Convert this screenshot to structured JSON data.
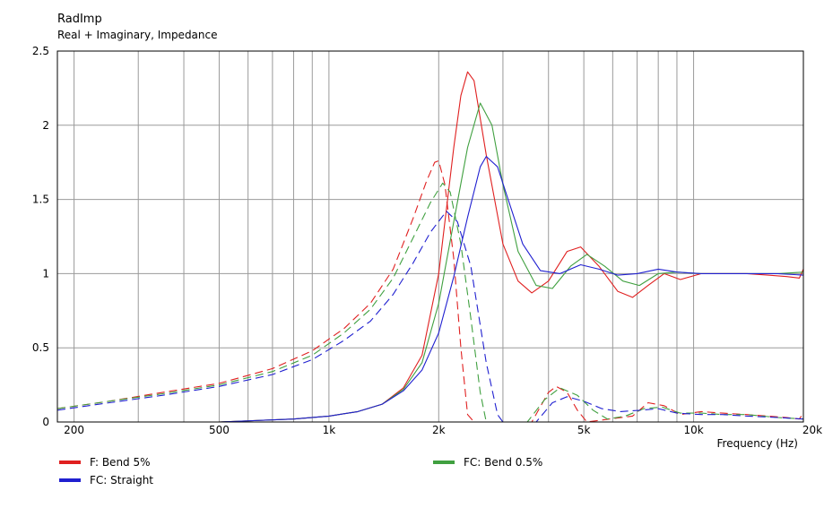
{
  "chart_data": {
    "type": "line",
    "title": "RadImp",
    "subtitle": "Real + Imaginary, Impedance",
    "xlabel": "Frequency  (Hz)",
    "ylabel": "",
    "xscale": "log",
    "xlim": [
      180,
      20000
    ],
    "ylim": [
      0,
      2.5
    ],
    "grid": true,
    "legend_placement": "bottom",
    "x_tick_labels": [
      {
        "value": 200,
        "label": "200"
      },
      {
        "value": 500,
        "label": "500"
      },
      {
        "value": 1000,
        "label": "1k"
      },
      {
        "value": 2000,
        "label": "2k"
      },
      {
        "value": 5000,
        "label": "5k"
      },
      {
        "value": 10000,
        "label": "10k"
      },
      {
        "value": 20000,
        "label": "20k"
      }
    ],
    "y_tick_labels": [
      {
        "value": 0,
        "label": "0"
      },
      {
        "value": 0.5,
        "label": "0.5"
      },
      {
        "value": 1,
        "label": "1"
      },
      {
        "value": 1.5,
        "label": "1.5"
      },
      {
        "value": 2,
        "label": "2"
      },
      {
        "value": 2.5,
        "label": "2.5"
      }
    ],
    "series": [
      {
        "name": "F: Bend 5%",
        "color": "#e02020",
        "real": [
          [
            180,
            0
          ],
          [
            500,
            0
          ],
          [
            800,
            0.02
          ],
          [
            1000,
            0.04
          ],
          [
            1200,
            0.07
          ],
          [
            1400,
            0.12
          ],
          [
            1600,
            0.23
          ],
          [
            1800,
            0.45
          ],
          [
            2000,
            1.0
          ],
          [
            2200,
            1.85
          ],
          [
            2300,
            2.2
          ],
          [
            2400,
            2.36
          ],
          [
            2500,
            2.3
          ],
          [
            2700,
            1.8
          ],
          [
            3000,
            1.2
          ],
          [
            3300,
            0.95
          ],
          [
            3600,
            0.87
          ],
          [
            4000,
            0.95
          ],
          [
            4500,
            1.15
          ],
          [
            4900,
            1.18
          ],
          [
            5500,
            1.05
          ],
          [
            6200,
            0.88
          ],
          [
            6800,
            0.84
          ],
          [
            7500,
            0.92
          ],
          [
            8300,
            1.0
          ],
          [
            9200,
            0.96
          ],
          [
            10500,
            1.0
          ],
          [
            12000,
            1.0
          ],
          [
            14000,
            1.0
          ],
          [
            16000,
            0.99
          ],
          [
            18000,
            0.98
          ],
          [
            19500,
            0.97
          ],
          [
            20000,
            1.03
          ]
        ],
        "imag": [
          [
            180,
            0.09
          ],
          [
            250,
            0.14
          ],
          [
            350,
            0.2
          ],
          [
            500,
            0.26
          ],
          [
            700,
            0.36
          ],
          [
            900,
            0.48
          ],
          [
            1100,
            0.63
          ],
          [
            1300,
            0.8
          ],
          [
            1500,
            1.03
          ],
          [
            1700,
            1.37
          ],
          [
            1850,
            1.62
          ],
          [
            1950,
            1.75
          ],
          [
            2000,
            1.76
          ],
          [
            2080,
            1.6
          ],
          [
            2200,
            1.1
          ],
          [
            2300,
            0.5
          ],
          [
            2400,
            0.05
          ],
          [
            2500,
            0
          ],
          [
            3600,
            0
          ],
          [
            4000,
            0.2
          ],
          [
            4200,
            0.24
          ],
          [
            4500,
            0.2
          ],
          [
            4800,
            0.08
          ],
          [
            5100,
            0
          ],
          [
            6800,
            0.04
          ],
          [
            7500,
            0.13
          ],
          [
            8300,
            0.11
          ],
          [
            9200,
            0.05
          ],
          [
            10500,
            0.07
          ],
          [
            12000,
            0.06
          ],
          [
            14000,
            0.05
          ],
          [
            16000,
            0.04
          ],
          [
            18000,
            0.03
          ],
          [
            19500,
            0.02
          ],
          [
            20000,
            0.06
          ]
        ]
      },
      {
        "name": "FC: Bend 0.5%",
        "color": "#40a040",
        "real": [
          [
            180,
            0
          ],
          [
            500,
            0
          ],
          [
            800,
            0.02
          ],
          [
            1000,
            0.04
          ],
          [
            1200,
            0.07
          ],
          [
            1400,
            0.12
          ],
          [
            1600,
            0.22
          ],
          [
            1800,
            0.4
          ],
          [
            2000,
            0.8
          ],
          [
            2200,
            1.35
          ],
          [
            2400,
            1.85
          ],
          [
            2600,
            2.15
          ],
          [
            2800,
            2.0
          ],
          [
            3000,
            1.6
          ],
          [
            3300,
            1.15
          ],
          [
            3700,
            0.92
          ],
          [
            4100,
            0.9
          ],
          [
            4600,
            1.05
          ],
          [
            5100,
            1.13
          ],
          [
            5700,
            1.05
          ],
          [
            6400,
            0.95
          ],
          [
            7100,
            0.92
          ],
          [
            8000,
            1.0
          ],
          [
            9000,
            1.01
          ],
          [
            10500,
            1.0
          ],
          [
            12000,
            1.0
          ],
          [
            14000,
            1.0
          ],
          [
            17000,
            1.0
          ],
          [
            20000,
            1.01
          ]
        ],
        "imag": [
          [
            180,
            0.09
          ],
          [
            250,
            0.14
          ],
          [
            350,
            0.19
          ],
          [
            500,
            0.25
          ],
          [
            700,
            0.34
          ],
          [
            900,
            0.45
          ],
          [
            1100,
            0.6
          ],
          [
            1300,
            0.76
          ],
          [
            1500,
            0.97
          ],
          [
            1700,
            1.24
          ],
          [
            1900,
            1.48
          ],
          [
            2050,
            1.61
          ],
          [
            2150,
            1.55
          ],
          [
            2300,
            1.2
          ],
          [
            2450,
            0.7
          ],
          [
            2600,
            0.2
          ],
          [
            2700,
            0
          ],
          [
            3500,
            0
          ],
          [
            3900,
            0.15
          ],
          [
            4300,
            0.23
          ],
          [
            4800,
            0.18
          ],
          [
            5300,
            0.08
          ],
          [
            5800,
            0.02
          ],
          [
            6500,
            0.04
          ],
          [
            7300,
            0.09
          ],
          [
            8200,
            0.1
          ],
          [
            9200,
            0.06
          ],
          [
            10500,
            0.06
          ],
          [
            12000,
            0.05
          ],
          [
            14000,
            0.05
          ],
          [
            17000,
            0.03
          ],
          [
            20000,
            0.02
          ]
        ]
      },
      {
        "name": "FC: Straight",
        "color": "#2020d0",
        "real": [
          [
            180,
            0
          ],
          [
            500,
            0
          ],
          [
            800,
            0.02
          ],
          [
            1000,
            0.04
          ],
          [
            1200,
            0.07
          ],
          [
            1400,
            0.12
          ],
          [
            1600,
            0.21
          ],
          [
            1800,
            0.35
          ],
          [
            2000,
            0.6
          ],
          [
            2200,
            0.98
          ],
          [
            2400,
            1.38
          ],
          [
            2600,
            1.72
          ],
          [
            2700,
            1.79
          ],
          [
            2900,
            1.72
          ],
          [
            3100,
            1.5
          ],
          [
            3400,
            1.2
          ],
          [
            3800,
            1.02
          ],
          [
            4300,
            1.0
          ],
          [
            4900,
            1.06
          ],
          [
            5500,
            1.03
          ],
          [
            6200,
            0.99
          ],
          [
            7000,
            1.0
          ],
          [
            8000,
            1.03
          ],
          [
            9000,
            1.01
          ],
          [
            10500,
            1.0
          ],
          [
            12000,
            1.0
          ],
          [
            14000,
            1.0
          ],
          [
            17000,
            1.0
          ],
          [
            20000,
            0.99
          ]
        ],
        "imag": [
          [
            180,
            0.08
          ],
          [
            250,
            0.13
          ],
          [
            350,
            0.18
          ],
          [
            500,
            0.24
          ],
          [
            700,
            0.32
          ],
          [
            900,
            0.42
          ],
          [
            1100,
            0.55
          ],
          [
            1300,
            0.68
          ],
          [
            1500,
            0.86
          ],
          [
            1700,
            1.07
          ],
          [
            1900,
            1.28
          ],
          [
            2100,
            1.42
          ],
          [
            2250,
            1.35
          ],
          [
            2450,
            1.05
          ],
          [
            2700,
            0.4
          ],
          [
            2900,
            0.05
          ],
          [
            3000,
            0
          ],
          [
            3700,
            0
          ],
          [
            4100,
            0.13
          ],
          [
            4500,
            0.17
          ],
          [
            5000,
            0.14
          ],
          [
            5600,
            0.09
          ],
          [
            6300,
            0.07
          ],
          [
            7200,
            0.08
          ],
          [
            8000,
            0.09
          ],
          [
            9000,
            0.06
          ],
          [
            10500,
            0.05
          ],
          [
            12000,
            0.05
          ],
          [
            14000,
            0.04
          ],
          [
            17000,
            0.03
          ],
          [
            20000,
            0.02
          ]
        ]
      }
    ]
  },
  "legend": [
    {
      "label": "F: Bend 5%",
      "color": "#e02020"
    },
    {
      "label": "FC: Straight",
      "color": "#2020d0"
    },
    {
      "label": "FC: Bend 0.5%",
      "color": "#40a040"
    }
  ]
}
